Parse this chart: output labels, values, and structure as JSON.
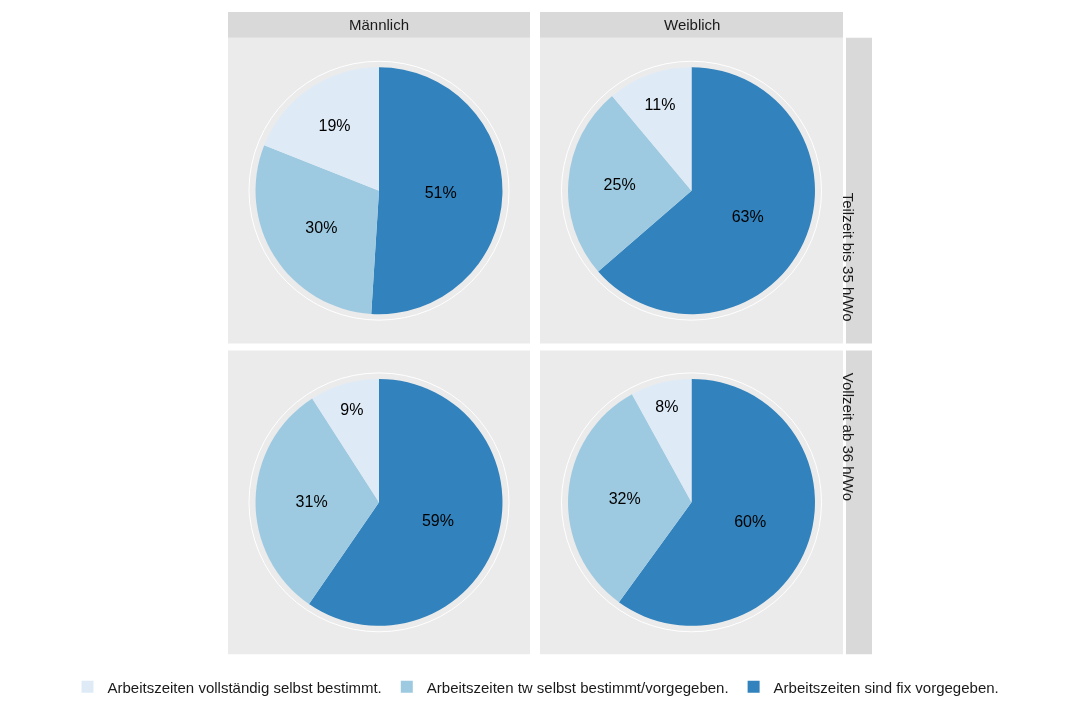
{
  "chart_data": [
    {
      "type": "pie",
      "title": "Männlich",
      "categories": [
        "Arbeitszeiten vollständig selbst bestimmt.",
        "Arbeitszeiten tw selbst bestimmt/vorgegeben.",
        "Arbeitszeiten sind fix vorgegeben."
      ],
      "values": [
        19,
        30,
        51
      ],
      "value_labels": [
        "19%",
        "30%",
        "51%"
      ],
      "colors": [
        "#deebf7",
        "#9ecae1",
        "#3182bd"
      ],
      "legend": "bottom"
    },
    {
      "type": "pie",
      "title": "Weiblich",
      "annotations": [
        "Teilzeit bis 35 h/Wo"
      ],
      "categories": [
        null,
        null,
        null
      ],
      "values": [
        11,
        25,
        63
      ],
      "value_labels": [
        "11%",
        "25%",
        "63%"
      ],
      "colors": [
        "#deebf7",
        "#9ecae1",
        "#3182bd"
      ]
    },
    {
      "type": "pie",
      "categories": [
        null,
        null,
        null
      ],
      "values": [
        9,
        31,
        59
      ],
      "value_labels": [
        "9%",
        "31%",
        "59%"
      ],
      "colors": [
        "#deebf7",
        "#9ecae1",
        "#3182bd"
      ]
    },
    {
      "type": "pie",
      "annotations": [
        "Vollzeit ab 36 h/Wo"
      ],
      "categories": [
        null,
        null,
        null
      ],
      "values": [
        8,
        32,
        60
      ],
      "value_labels": [
        "8%",
        "32%",
        "60%"
      ],
      "colors": [
        "#deebf7",
        "#9ecae1",
        "#3182bd"
      ]
    }
  ]
}
